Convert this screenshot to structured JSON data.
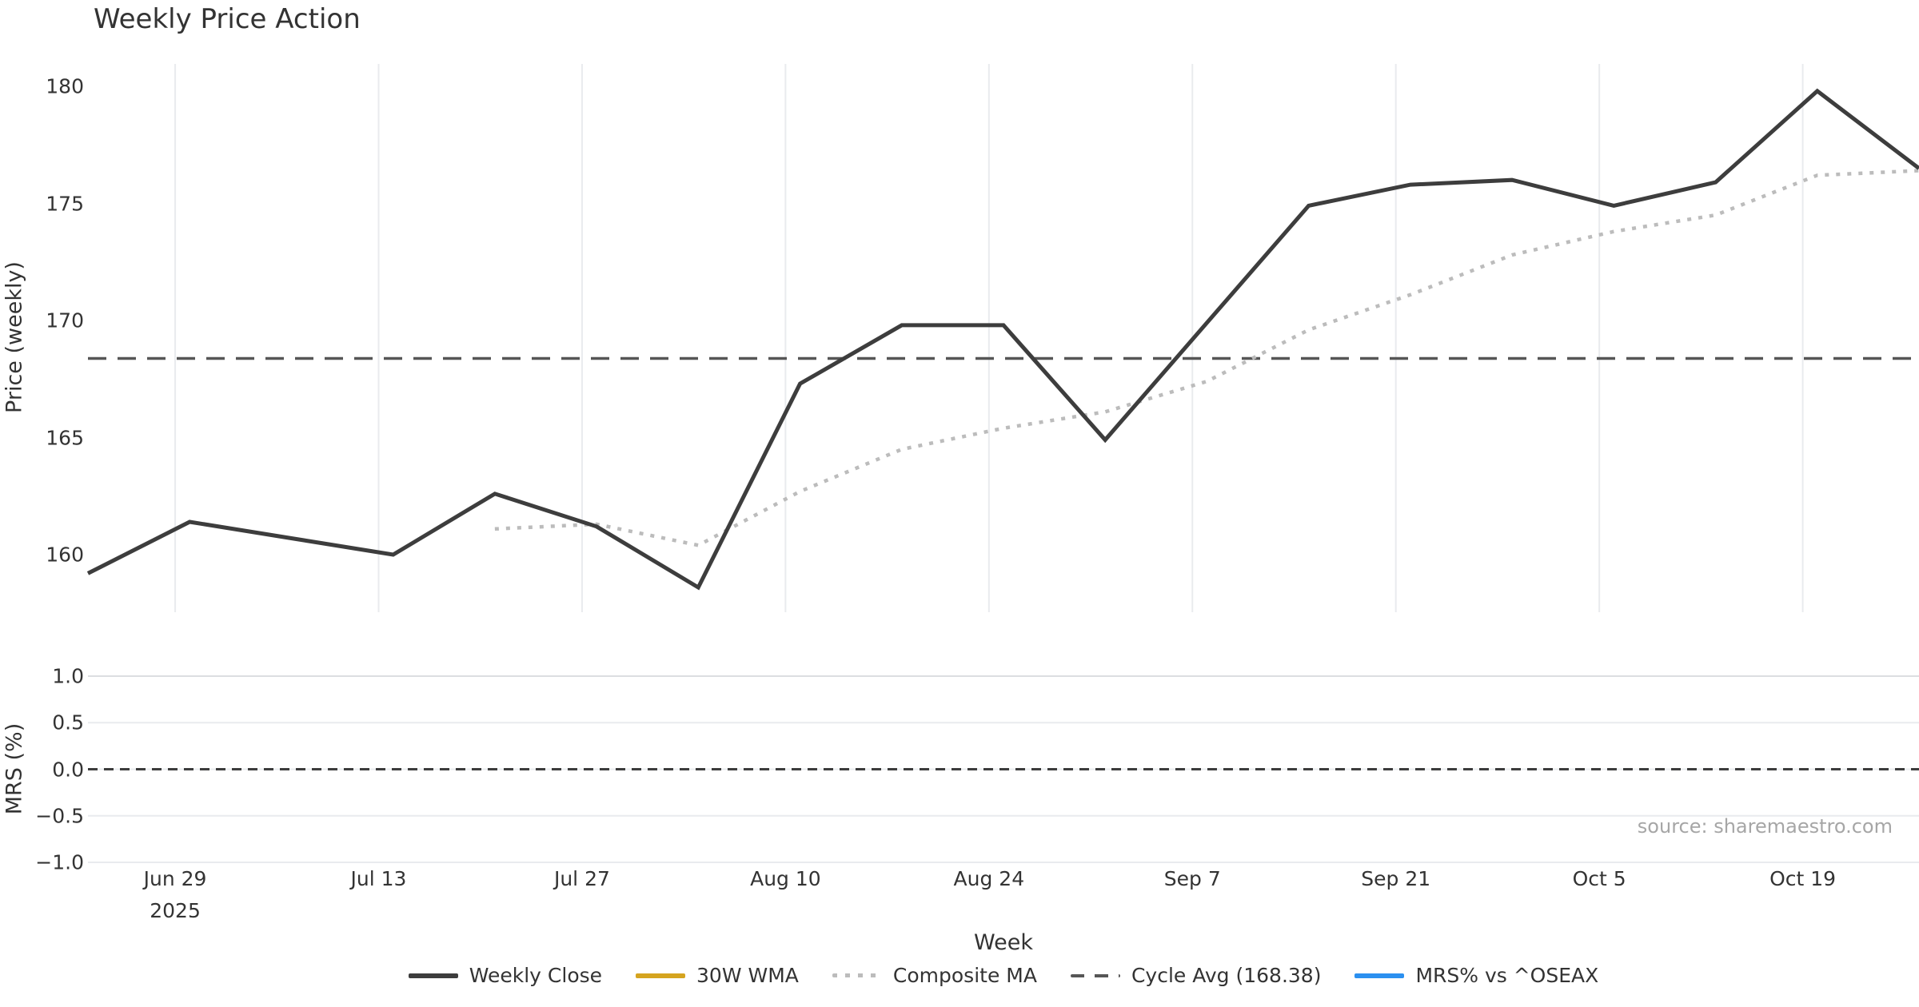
{
  "title": "Weekly Price Action",
  "source_note": "source: sharemaestro.com",
  "axes": {
    "price_label": "Price (weekly)",
    "mrs_label": "MRS (%)",
    "week_label": "Week",
    "price_ticks": [
      "180",
      "175",
      "170",
      "165",
      "160"
    ],
    "mrs_ticks": [
      "1.0",
      "0.5",
      "0.0",
      "−0.5",
      "−1.0"
    ],
    "x_ticks": [
      "Jun 29",
      "Jul 13",
      "Jul 27",
      "Aug 10",
      "Aug 24",
      "Sep 7",
      "Sep 21",
      "Oct 5",
      "Oct 19"
    ],
    "x_first_tick_year": "2025"
  },
  "legend": {
    "items": [
      {
        "label": "Weekly Close",
        "style": "solid",
        "color_key": "weekly_close"
      },
      {
        "label": "30W WMA",
        "style": "solid",
        "color_key": "wma_30w"
      },
      {
        "label": "Composite MA",
        "style": "dotted",
        "color_key": "composite_ma"
      },
      {
        "label": "Cycle Avg (168.38)",
        "style": "dashed",
        "color_key": "cycle_avg"
      },
      {
        "label": "MRS% vs ^OSEAX",
        "style": "solid",
        "color_key": "mrs_line"
      }
    ]
  },
  "colors": {
    "weekly_close": "#3d3d3d",
    "wma_30w": "#d5a41f",
    "composite_ma": "#bcbcbc",
    "cycle_avg": "#565656",
    "mrs_line": "#2b90f0",
    "mrs_zero_dash": "#3d3d3d",
    "grid": "#e9ebee",
    "grid_strong": "#dcdee1",
    "text": "#333333",
    "muted_text": "#a6a6a6"
  },
  "chart_data": [
    {
      "type": "line",
      "panel": "price",
      "title": "Weekly Price Action",
      "xlabel": "Week",
      "ylabel": "Price (weekly)",
      "ylim": [
        157.5,
        181.0
      ],
      "grid": "vertical-only",
      "x": [
        "2025-06-23",
        "2025-06-30",
        "2025-07-07",
        "2025-07-14",
        "2025-07-21",
        "2025-07-28",
        "2025-08-04",
        "2025-08-11",
        "2025-08-18",
        "2025-08-25",
        "2025-09-01",
        "2025-09-08",
        "2025-09-15",
        "2025-09-22",
        "2025-09-29",
        "2025-10-06",
        "2025-10-13",
        "2025-10-20",
        "2025-10-27"
      ],
      "series": [
        {
          "name": "Weekly Close",
          "style": "solid",
          "values": [
            159.2,
            161.4,
            160.7,
            160.0,
            162.6,
            161.2,
            158.6,
            167.3,
            169.8,
            169.8,
            164.9,
            169.9,
            174.9,
            175.8,
            176.0,
            174.9,
            175.9,
            179.8,
            176.5
          ]
        },
        {
          "name": "30W WMA",
          "style": "solid",
          "note": "in legend but no visible data in view",
          "values": []
        },
        {
          "name": "Composite MA",
          "style": "dotted",
          "values": [
            null,
            null,
            null,
            null,
            161.1,
            161.3,
            160.4,
            162.7,
            164.5,
            165.4,
            166.1,
            167.4,
            169.6,
            171.1,
            172.8,
            173.8,
            174.5,
            176.2,
            176.4
          ]
        },
        {
          "name": "Cycle Avg",
          "style": "dashed",
          "constant": 168.38
        }
      ]
    },
    {
      "type": "line",
      "panel": "mrs",
      "ylabel": "MRS (%)",
      "ylim": [
        -1.0,
        1.0
      ],
      "yticks": [
        1.0,
        0.5,
        0.0,
        -0.5,
        -1.0
      ],
      "grid": "horizontal-only",
      "series": [
        {
          "name": "MRS% vs ^OSEAX",
          "style": "solid",
          "note": "in legend but no visible data in view",
          "values": []
        },
        {
          "name": "zero-line",
          "style": "dashed",
          "constant": 0.0
        }
      ]
    }
  ]
}
